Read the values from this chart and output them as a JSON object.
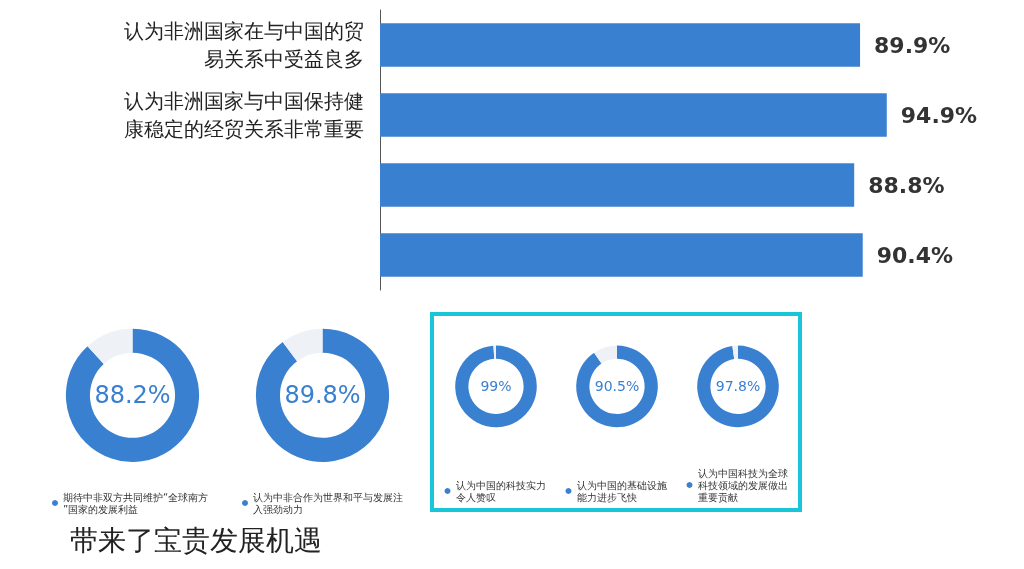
{
  "chart_data": [
    {
      "type": "bar",
      "orientation": "horizontal",
      "categories": [
        "认为非洲国家在与中国的贸易关系中受益良多",
        "认为非洲国家与中国保持健康稳定的经贸关系非常重要",
        null,
        null
      ],
      "values": [
        89.9,
        94.9,
        88.8,
        90.4
      ],
      "value_labels": [
        "89.9%",
        "94.9%",
        "88.8%",
        "90.4%"
      ],
      "color": "#3a80d0",
      "annotations": [
        "带来了宝贵发展机遇"
      ]
    },
    {
      "type": "donut",
      "categories": [
        "期待中非双方共同维护“全球南方”国家的发展利益",
        null
      ],
      "values": [
        88.2,
        11.8
      ],
      "value_labels": [
        "88.2%",
        null
      ],
      "colors": [
        "#3a80d0",
        "#eef1f5"
      ],
      "legend": "bottom"
    },
    {
      "type": "donut",
      "categories": [
        "认为中非合作为世界和平与发展注入强劲动力",
        null
      ],
      "values": [
        89.8,
        10.2
      ],
      "value_labels": [
        "89.8%",
        null
      ],
      "colors": [
        "#3a80d0",
        "#eef1f5"
      ],
      "legend": "bottom"
    },
    {
      "type": "donut",
      "categories": [
        "认为中国的科技实力令人赞叹",
        null
      ],
      "values": [
        99,
        1
      ],
      "value_labels": [
        "99%",
        null
      ],
      "colors": [
        "#3a80d0",
        "#eef1f5"
      ],
      "legend": "bottom"
    },
    {
      "type": "donut",
      "categories": [
        "认为中国的基础设施能力进步飞快",
        null
      ],
      "values": [
        90.5,
        9.5
      ],
      "value_labels": [
        "90.5%",
        null
      ],
      "colors": [
        "#3a80d0",
        "#eef1f5"
      ],
      "legend": "bottom"
    },
    {
      "type": "donut",
      "categories": [
        "认为中国科技为全球科技领域的发展做出重要贡献",
        null
      ],
      "values": [
        97.8,
        2.2
      ],
      "value_labels": [
        "97.8%",
        null
      ],
      "colors": [
        "#3a80d0",
        "#eef1f5"
      ],
      "legend": "bottom"
    }
  ]
}
